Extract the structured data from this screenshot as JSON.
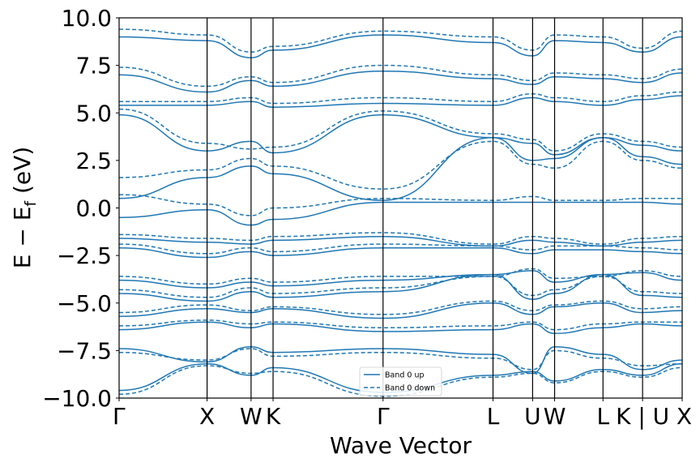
{
  "chart_data": {
    "type": "line",
    "xlabel": "Wave Vector",
    "ylabel_main": "E − E",
    "ylabel_sub": "f",
    "ylabel_unit": " (eV)",
    "ylim": [
      -10,
      10
    ],
    "yticks": [
      -10.0,
      -7.5,
      -5.0,
      -2.5,
      0.0,
      2.5,
      5.0,
      7.5,
      10.0
    ],
    "ytick_labels": [
      "−10.0",
      "−7.5",
      "−5.0",
      "−2.5",
      "0.0",
      "2.5",
      "5.0",
      "7.5",
      "10.0"
    ],
    "kpath_positions": [
      0,
      1.0,
      1.5,
      1.75,
      3.0,
      4.25,
      4.7,
      4.95,
      5.5,
      5.95,
      6.4
    ],
    "kpath_labels": [
      "Γ",
      "X",
      "W",
      "K",
      "Γ",
      "L",
      "U",
      "W",
      "L",
      "K | U",
      "X"
    ],
    "xlim": [
      0,
      6.4
    ],
    "grid": false,
    "legend_position": "lower-center",
    "series": [
      {
        "name": "Band 0 up",
        "linestyle": "solid",
        "color": "#1f77b4"
      },
      {
        "name": "Band 0 down",
        "linestyle": "dashed",
        "color": "#1f77b4"
      }
    ],
    "band_nodes": {
      "up": [
        [
          -9.6,
          -8.2,
          -8.8,
          -8.4,
          -9.7,
          -8.8,
          -8.6,
          -9.1,
          -8.5,
          -8.8,
          -8.2
        ],
        [
          -7.4,
          -8.1,
          -7.3,
          -7.6,
          -7.4,
          -7.7,
          -8.7,
          -7.3,
          -7.7,
          -8.5,
          -8.0
        ],
        [
          -6.4,
          -6.0,
          -6.3,
          -6.1,
          -6.5,
          -6.4,
          -6.1,
          -6.6,
          -6.3,
          -6.1,
          -6.2
        ],
        [
          -5.7,
          -5.3,
          -5.5,
          -5.3,
          -5.8,
          -5.0,
          -5.6,
          -5.2,
          -5.0,
          -5.5,
          -5.4
        ],
        [
          -4.5,
          -4.9,
          -4.4,
          -4.7,
          -4.4,
          -3.5,
          -4.8,
          -4.5,
          -3.5,
          -4.6,
          -4.7
        ],
        [
          -3.8,
          -4.2,
          -3.9,
          -4.1,
          -3.8,
          -3.5,
          -3.3,
          -3.9,
          -3.5,
          -3.4,
          -3.8
        ],
        [
          -2.1,
          -2.6,
          -2.3,
          -2.5,
          -2.1,
          -2.1,
          -2.4,
          -2.2,
          -2.2,
          -2.3,
          -2.4
        ],
        [
          -1.6,
          -1.8,
          -1.9,
          -1.7,
          -1.5,
          -2.0,
          -1.7,
          -1.8,
          -2.0,
          -1.8,
          -1.7
        ],
        [
          -0.5,
          -0.1,
          -0.9,
          -0.6,
          0.3,
          0.3,
          0.3,
          0.3,
          0.3,
          0.3,
          0.2
        ],
        [
          0.5,
          1.6,
          2.2,
          1.8,
          0.4,
          3.7,
          2.5,
          2.6,
          3.7,
          2.7,
          2.3
        ],
        [
          4.9,
          3.0,
          3.5,
          2.9,
          4.9,
          3.7,
          3.4,
          2.8,
          3.7,
          3.3,
          3.0
        ],
        [
          5.4,
          5.4,
          5.6,
          5.3,
          5.5,
          5.4,
          5.8,
          5.6,
          5.4,
          5.7,
          5.9
        ],
        [
          7.0,
          6.1,
          6.7,
          6.4,
          7.2,
          6.8,
          6.5,
          6.9,
          6.8,
          6.6,
          7.1
        ],
        [
          9.0,
          8.8,
          7.9,
          8.3,
          9.1,
          8.7,
          8.0,
          8.8,
          8.7,
          8.2,
          9.0
        ]
      ],
      "down": [
        [
          -9.8,
          -8.3,
          -8.7,
          -8.6,
          -9.9,
          -8.9,
          -8.7,
          -9.2,
          -8.6,
          -8.9,
          -8.4
        ],
        [
          -7.6,
          -8.0,
          -7.4,
          -7.8,
          -7.6,
          -7.9,
          -8.5,
          -7.5,
          -7.9,
          -8.3,
          -8.2
        ],
        [
          -6.2,
          -5.9,
          -6.1,
          -6.0,
          -6.3,
          -6.2,
          -6.0,
          -6.4,
          -6.1,
          -6.0,
          -6.0
        ],
        [
          -5.5,
          -5.1,
          -5.4,
          -5.2,
          -5.6,
          -4.9,
          -5.4,
          -5.1,
          -4.9,
          -5.3,
          -5.2
        ],
        [
          -4.3,
          -4.7,
          -4.2,
          -4.5,
          -4.2,
          -3.6,
          -4.6,
          -4.3,
          -3.6,
          -4.4,
          -4.5
        ],
        [
          -3.6,
          -4.0,
          -3.7,
          -3.9,
          -3.6,
          -3.6,
          -3.2,
          -3.7,
          -3.6,
          -3.3,
          -3.6
        ],
        [
          -1.9,
          -2.4,
          -2.1,
          -2.3,
          -1.9,
          -2.0,
          -2.2,
          -2.0,
          -2.0,
          -2.1,
          -2.2
        ],
        [
          -1.4,
          -1.6,
          -1.7,
          -1.5,
          -1.3,
          -1.9,
          -1.5,
          -1.6,
          -1.9,
          -1.6,
          -1.5
        ],
        [
          0.7,
          0.2,
          -0.4,
          0.0,
          0.5,
          0.4,
          0.6,
          0.4,
          0.4,
          0.5,
          0.5
        ],
        [
          1.6,
          2.0,
          2.6,
          2.2,
          1.0,
          3.5,
          2.3,
          2.1,
          3.5,
          2.5,
          2.1
        ],
        [
          5.2,
          3.4,
          3.1,
          3.2,
          5.1,
          3.9,
          3.6,
          3.0,
          3.9,
          3.5,
          3.2
        ],
        [
          5.6,
          5.6,
          5.8,
          5.5,
          5.8,
          5.6,
          6.0,
          5.8,
          5.6,
          5.9,
          6.1
        ],
        [
          7.4,
          6.4,
          6.9,
          6.6,
          7.5,
          7.0,
          6.7,
          7.1,
          7.0,
          6.8,
          7.3
        ],
        [
          9.4,
          9.1,
          8.2,
          8.5,
          9.3,
          9.0,
          8.3,
          9.1,
          9.0,
          8.4,
          9.3
        ]
      ]
    }
  }
}
